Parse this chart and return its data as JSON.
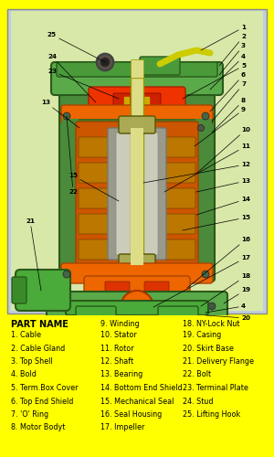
{
  "bg_color": "#FFFF00",
  "diagram_bg": "#C0CEDC",
  "motor_body_green": "#4A8A3A",
  "motor_body_dark": "#2A5A1A",
  "orange_main": "#DD6600",
  "orange_dark": "#AA3300",
  "orange_light": "#FF8800",
  "yellow_green": "#CCDD44",
  "shaft_color": "#DDDD88",
  "stator_gray": "#8A9A8A",
  "teal_green": "#3A8A6A",
  "part_name_header": "PART NAME",
  "parts_col1_header": "",
  "parts_col1": [
    "1. Cable",
    "2. Cable Gland",
    "3. Top Shell",
    "4. Bold",
    "5. Term.Box Cover",
    "6. Top End Shield",
    "7. 'O' Ring",
    "8. Motor Bodyt"
  ],
  "parts_col2": [
    "9. Winding",
    "10. Stator",
    "11. Rotor",
    "12. Shaft",
    "13. Bearing",
    "14. Bottom End Shield",
    "15. Mechanical Seal",
    "16. Seal Housing",
    "17. Impeller"
  ],
  "parts_col3": [
    "18. NY-Lock Nut",
    "19. Casing",
    "20. Skirt Base",
    "21. Delivery Flange",
    "22. Bolt",
    "23. Terminal Plate",
    "24. Stud",
    "25. Lifting Hook"
  ]
}
